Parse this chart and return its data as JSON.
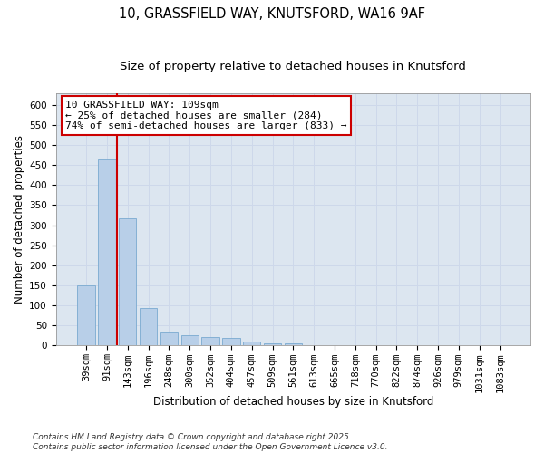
{
  "title_line1": "10, GRASSFIELD WAY, KNUTSFORD, WA16 9AF",
  "title_line2": "Size of property relative to detached houses in Knutsford",
  "xlabel": "Distribution of detached houses by size in Knutsford",
  "ylabel": "Number of detached properties",
  "footer": "Contains HM Land Registry data © Crown copyright and database right 2025.\nContains public sector information licensed under the Open Government Licence v3.0.",
  "categories": [
    "39sqm",
    "91sqm",
    "143sqm",
    "196sqm",
    "248sqm",
    "300sqm",
    "352sqm",
    "404sqm",
    "457sqm",
    "509sqm",
    "561sqm",
    "613sqm",
    "665sqm",
    "718sqm",
    "770sqm",
    "822sqm",
    "874sqm",
    "926sqm",
    "979sqm",
    "1031sqm",
    "1083sqm"
  ],
  "bar_values": [
    150,
    465,
    318,
    93,
    35,
    25,
    22,
    20,
    9,
    5,
    5,
    2,
    1,
    1,
    1,
    1,
    1,
    1,
    1,
    1,
    1
  ],
  "bar_color": "#b8cfe8",
  "bar_edge_color": "#7aaad0",
  "grid_color": "#cdd8ea",
  "background_color": "#dce6f0",
  "annotation_text_line1": "10 GRASSFIELD WAY: 109sqm",
  "annotation_text_line2": "← 25% of detached houses are smaller (284)",
  "annotation_text_line3": "74% of semi-detached houses are larger (833) →",
  "annotation_box_edge_color": "#cc0000",
  "vline_color": "#cc0000",
  "vline_x": 1.5,
  "ylim": [
    0,
    630
  ],
  "yticks": [
    0,
    50,
    100,
    150,
    200,
    250,
    300,
    350,
    400,
    450,
    500,
    550,
    600
  ],
  "title_fontsize": 10.5,
  "subtitle_fontsize": 9.5,
  "axis_label_fontsize": 8.5,
  "tick_fontsize": 7.5,
  "annotation_fontsize": 8.0,
  "footer_fontsize": 6.5
}
